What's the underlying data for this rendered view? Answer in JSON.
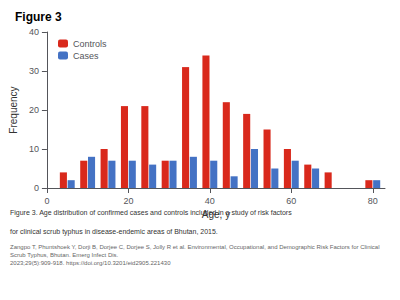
{
  "chart_data": {
    "type": "bar",
    "title": "Figure 3",
    "x_label": "Age, y",
    "y_label": "Frequency",
    "annotations": [
      "Figure 3. Age distribution of confirmed cases and controls included in a study of risk factors",
      "for clinical scrub typhus in disease-endemic areas of Bhutan, 2015.",
      "Zangpo T, Phuntshoek Y, Dorji B, Dorjee C, Dorjee S, Jolly R et al. Environmental, Occupational, and Demographic Risk Factors for Clinical Scrub Typhus, Bhutan. Emerg Infect Dis.\n2023;29(5):909-918. https://doi.org/10.3201/eid2905.221430"
    ],
    "x": [
      5,
      10,
      15,
      20,
      25,
      30,
      35,
      40,
      45,
      50,
      55,
      60,
      65,
      70,
      75,
      80
    ],
    "series": [
      {
        "name": "Controls",
        "color": "#d9291c",
        "values": [
          4,
          7,
          10,
          21,
          21,
          7,
          31,
          34,
          22,
          19,
          15,
          10,
          6,
          4,
          0,
          2
        ]
      },
      {
        "name": "Cases",
        "color": "#4472c4",
        "values": [
          2,
          8,
          7,
          7,
          6,
          7,
          8,
          7,
          3,
          10,
          5,
          7,
          5,
          0,
          0,
          2
        ]
      }
    ],
    "xlim": [
      0,
      83
    ],
    "xticks": [
      0,
      20,
      40,
      60,
      80
    ],
    "ylim": [
      0,
      40
    ],
    "yticks": [
      0,
      10,
      20,
      30,
      40
    ],
    "legend": "upper left",
    "grid": false
  }
}
